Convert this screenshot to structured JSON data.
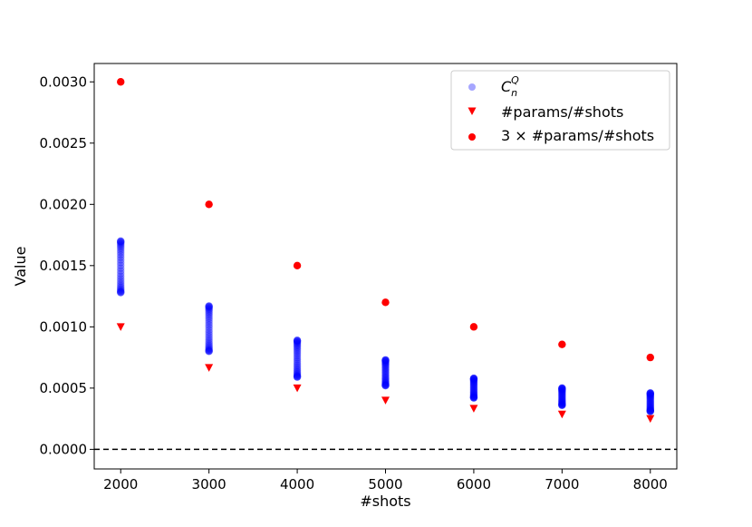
{
  "chart_data": {
    "type": "scatter",
    "title": "",
    "xlabel": "#shots",
    "ylabel": "Value",
    "xlim": [
      1700,
      8300
    ],
    "ylim": [
      -0.00016,
      0.00315
    ],
    "xticks": [
      2000,
      3000,
      4000,
      5000,
      6000,
      7000,
      8000
    ],
    "xtick_labels": [
      "2000",
      "3000",
      "4000",
      "5000",
      "6000",
      "7000",
      "8000"
    ],
    "yticks": [
      0.0,
      0.0005,
      0.001,
      0.0015,
      0.002,
      0.0025,
      0.003
    ],
    "ytick_labels": [
      "0.0000",
      "0.0005",
      "0.0010",
      "0.0015",
      "0.0020",
      "0.0025",
      "0.0030"
    ],
    "grid": false,
    "legend_position": "top-right",
    "reference_line": {
      "y": 0.0,
      "style": "dashed",
      "color": "#000000"
    },
    "series": [
      {
        "name": "C_n^Q",
        "legend_main": "C",
        "legend_sub": "n",
        "legend_sup": "Q",
        "marker": "circle",
        "color": "#0000ff",
        "alpha": 0.35,
        "x": [
          2000,
          3000,
          4000,
          5000,
          6000,
          7000,
          8000
        ],
        "y_min": [
          0.00128,
          0.0008,
          0.00059,
          0.00052,
          0.00042,
          0.00036,
          0.00031
        ],
        "y_max": [
          0.0017,
          0.00117,
          0.00089,
          0.00073,
          0.00058,
          0.0005,
          0.00046
        ],
        "samples_per_x": 30
      },
      {
        "name": "#params/#shots",
        "marker": "triangle-down",
        "color": "#ff0000",
        "x": [
          2000,
          3000,
          4000,
          5000,
          6000,
          7000,
          8000
        ],
        "y": [
          0.001,
          0.000667,
          0.0005,
          0.0004,
          0.000333,
          0.000286,
          0.00025
        ]
      },
      {
        "name": "3 × #params/#shots",
        "marker": "circle",
        "color": "#ff0000",
        "x": [
          2000,
          3000,
          4000,
          5000,
          6000,
          7000,
          8000
        ],
        "y": [
          0.003,
          0.002,
          0.0015,
          0.0012,
          0.001,
          0.000857,
          0.00075
        ]
      }
    ]
  }
}
